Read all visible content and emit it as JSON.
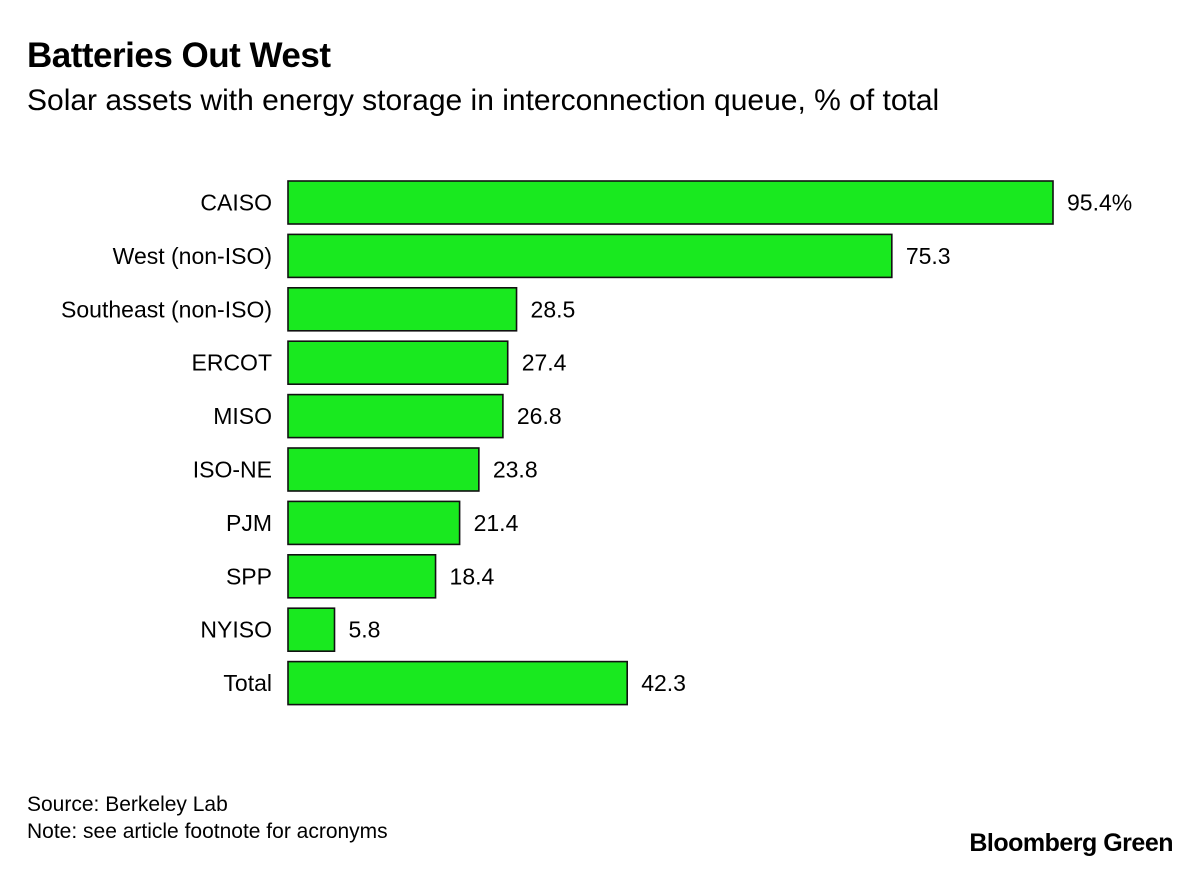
{
  "chart_data": {
    "type": "bar",
    "orientation": "horizontal",
    "title": "Batteries Out West",
    "subtitle": "Solar assets with energy storage in interconnection queue, % of total",
    "categories": [
      "CAISO",
      "West (non-ISO)",
      "Southeast (non-ISO)",
      "ERCOT",
      "MISO",
      "ISO-NE",
      "PJM",
      "SPP",
      "NYISO",
      "Total"
    ],
    "values": [
      95.4,
      75.3,
      28.5,
      27.4,
      26.8,
      23.8,
      21.4,
      18.4,
      5.8,
      42.3
    ],
    "value_labels": [
      "95.4%",
      "75.3",
      "28.5",
      "27.4",
      "26.8",
      "23.8",
      "21.4",
      "18.4",
      "5.8",
      "42.3"
    ],
    "xlabel": "",
    "ylabel": "",
    "xlim": [
      0,
      100
    ],
    "grid": false,
    "bar_color": "#19e91f"
  },
  "footer": {
    "source": "Source: Berkeley Lab",
    "note": "Note: see article footnote for acronyms",
    "brand": "Bloomberg Green"
  }
}
